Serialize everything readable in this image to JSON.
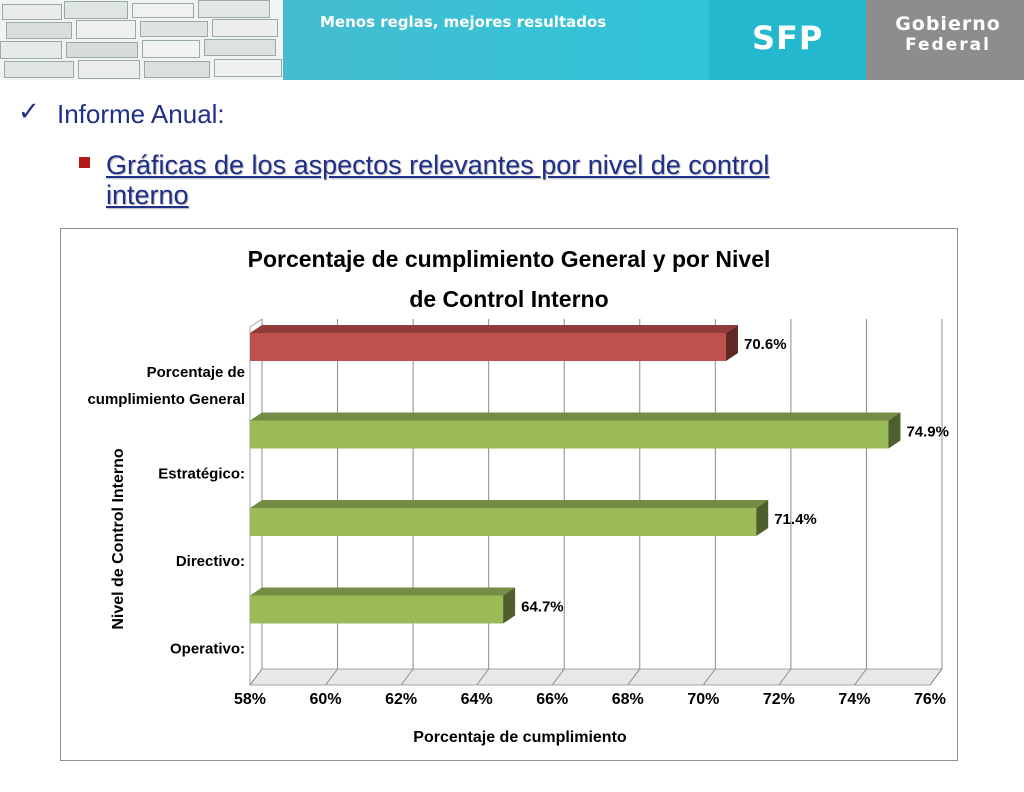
{
  "header": {
    "tagline": "Menos reglas, mejores resultados",
    "agency_logo": "SFP",
    "government_logo": [
      "Gobierno",
      "Federal"
    ]
  },
  "slide": {
    "check_icon": "checkmark-icon",
    "heading": "Informe Anual:",
    "subheading": "Gráficas de los aspectos relevantes por nivel de control interno"
  },
  "colors": {
    "banner": "#3fbfd3",
    "general_bar": "#c0504d",
    "level_bar": "#9bbb59",
    "heading_text": "#1f2f8a",
    "bullet": "#b31b1b"
  },
  "chart_data": {
    "type": "bar",
    "orientation": "horizontal",
    "style": "3d",
    "title": [
      "Porcentaje de cumplimiento General y por Nivel",
      "de Control Interno"
    ],
    "xlabel": "Porcentaje de cumplimiento",
    "ylabel": "Nivel de Control Interno",
    "xlim": [
      58,
      76
    ],
    "xticks": [
      "58%",
      "60%",
      "62%",
      "64%",
      "66%",
      "68%",
      "70%",
      "72%",
      "74%",
      "76%"
    ],
    "grid": true,
    "categories": [
      [
        "Porcentaje de",
        "cumplimiento General"
      ],
      [
        "Estratégico:"
      ],
      [
        "Directivo:"
      ],
      [
        "Operativo:"
      ]
    ],
    "values": [
      70.6,
      74.9,
      71.4,
      64.7
    ],
    "data_labels": [
      "70.6%",
      "74.9%",
      "71.4%",
      "64.7%"
    ],
    "bar_colors": [
      "#c0504d",
      "#9bbb59",
      "#9bbb59",
      "#9bbb59"
    ]
  }
}
